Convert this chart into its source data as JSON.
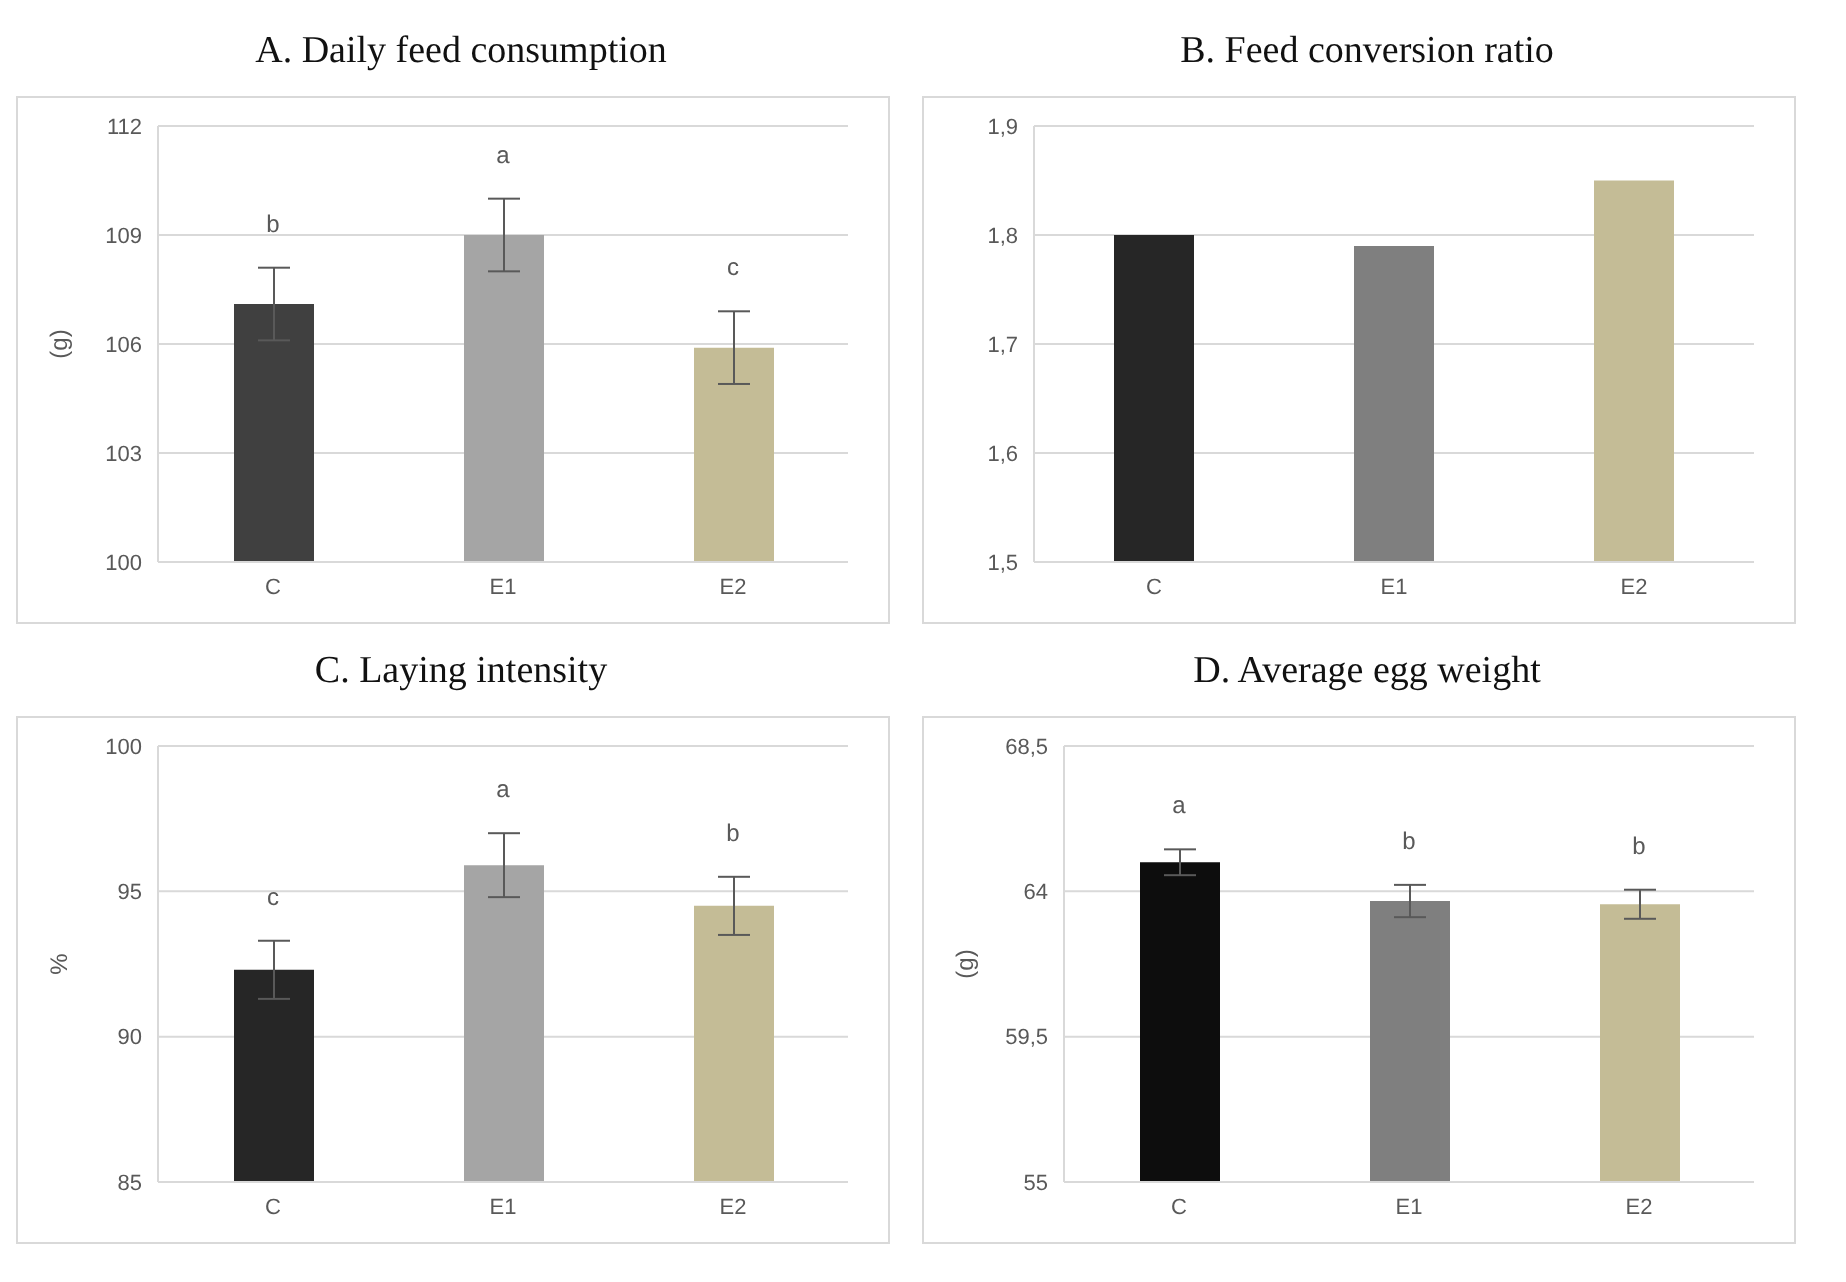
{
  "chart_data": [
    {
      "type": "bar",
      "title": "A. Daily feed consumption",
      "ylabel": "(g)",
      "categories": [
        "C",
        "E1",
        "E2"
      ],
      "values": [
        107.1,
        109.0,
        105.9
      ],
      "errors": [
        1.0,
        1.0,
        1.0
      ],
      "colors": [
        "#404040",
        "#a5a5a5",
        "#c4bc96"
      ],
      "ylim": [
        100,
        112
      ],
      "yticks": [
        100,
        103,
        106,
        109,
        112
      ],
      "grid": "y",
      "legend": false,
      "annotations": [
        "b",
        "a",
        "c"
      ]
    },
    {
      "type": "bar",
      "title": "B. Feed conversion ratio",
      "categories": [
        "C",
        "E1",
        "E2"
      ],
      "values": [
        1.8,
        1.79,
        1.85
      ],
      "colors": [
        "#262626",
        "#7f7f7f",
        "#c4bc96"
      ],
      "ylim": [
        1.5,
        1.9
      ],
      "yticks": [
        {
          "value": 1.5,
          "label": "1,5"
        },
        {
          "value": 1.6,
          "label": "1,6"
        },
        {
          "value": 1.7,
          "label": "1,7"
        },
        {
          "value": 1.8,
          "label": "1,8"
        },
        {
          "value": 1.9,
          "label": "1,9"
        }
      ],
      "grid": "y",
      "legend": false
    },
    {
      "type": "bar",
      "title": "C. Laying intensity",
      "ylabel": "%",
      "categories": [
        "C",
        "E1",
        "E2"
      ],
      "values": [
        92.3,
        95.9,
        94.5
      ],
      "errors": [
        1.0,
        1.1,
        1.0
      ],
      "colors": [
        "#262626",
        "#a5a5a5",
        "#c4bc96"
      ],
      "ylim": [
        85,
        100
      ],
      "yticks": [
        85,
        90,
        95,
        100
      ],
      "grid": "y",
      "legend": false,
      "annotations": [
        "c",
        "a",
        "b"
      ]
    },
    {
      "type": "bar",
      "title": "D. Average egg weight",
      "ylabel": "(g)",
      "categories": [
        "C",
        "E1",
        "E2"
      ],
      "values": [
        64.9,
        63.7,
        63.6
      ],
      "errors": [
        0.4,
        0.5,
        0.45
      ],
      "colors": [
        "#0d0d0d",
        "#7f7f7f",
        "#c4bc96"
      ],
      "ylim": [
        55,
        68.5
      ],
      "yticks": [
        55,
        {
          "value": 59.5,
          "label": "59,5"
        },
        64,
        {
          "value": 68.5,
          "label": "68,5"
        }
      ],
      "grid": "y",
      "legend": false,
      "annotations": [
        "a",
        "b",
        "b"
      ]
    }
  ]
}
